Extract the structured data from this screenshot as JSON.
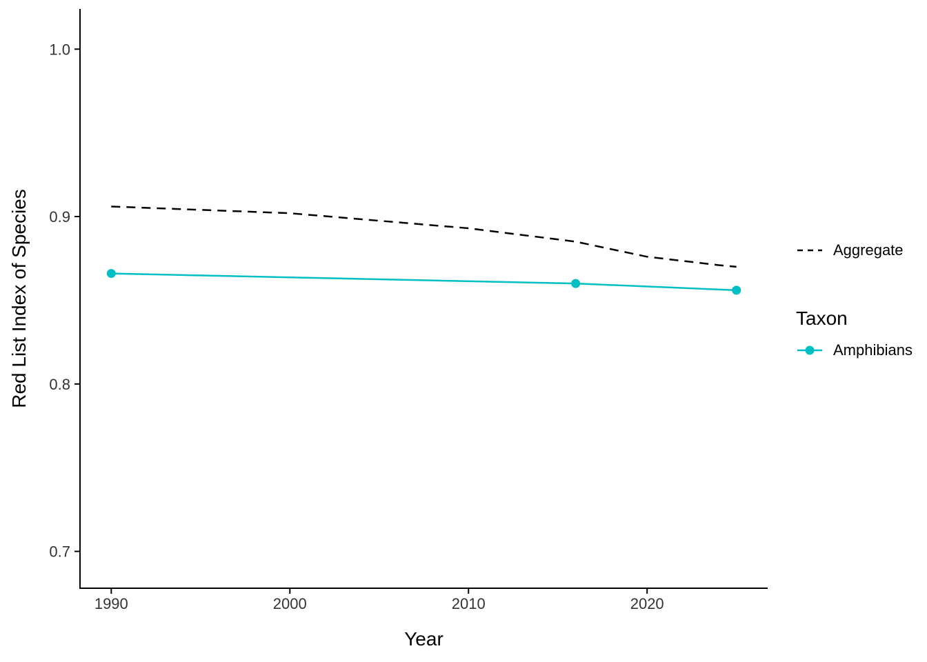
{
  "chart_data": {
    "type": "line",
    "title": "",
    "xlabel": "Year",
    "ylabel": "Red List Index of Species",
    "x_ticks": [
      1990,
      2000,
      2010,
      2020
    ],
    "y_ticks": [
      1.0,
      0.9,
      0.8,
      0.7
    ],
    "y_tick_labels": [
      "1.0",
      "0.9",
      "0.8",
      "0.7"
    ],
    "xlim": [
      1988.25,
      2026.75
    ],
    "ylim": [
      0.678,
      1.024
    ],
    "grid": false,
    "legend_position": "right",
    "axis_color": "#000000",
    "tick_label_color": "#333333",
    "series": [
      {
        "name": "Aggregate",
        "style": "dashed",
        "color": "#000000",
        "markers": false,
        "x": [
          1990,
          2000,
          2010,
          2016,
          2020,
          2024,
          2025
        ],
        "y": [
          0.906,
          0.902,
          0.893,
          0.885,
          0.876,
          0.871,
          0.87
        ]
      },
      {
        "name": "Amphibians",
        "style": "solid",
        "color": "#00BFC4",
        "markers": true,
        "x": [
          1990,
          2016,
          2025
        ],
        "y": [
          0.866,
          0.86,
          0.856
        ]
      }
    ]
  },
  "legend": {
    "aggregate_label": "Aggregate",
    "taxon_title": "Taxon",
    "amphibians_label": "Amphibians"
  }
}
